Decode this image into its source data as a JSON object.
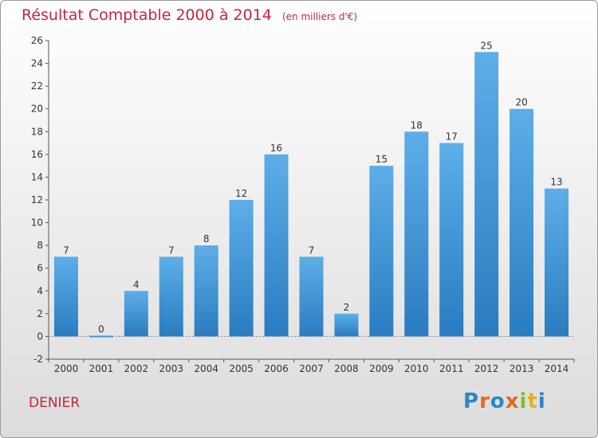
{
  "header": {
    "title": "Résultat Comptable 2000 à 2014",
    "unit": "(en milliers d'€)"
  },
  "footer": {
    "commune": "DENIER",
    "logo_letters": [
      "P",
      "r",
      "o",
      "x",
      "i",
      "t",
      "i"
    ]
  },
  "colors": {
    "title": "#c8243e",
    "bar_top": "#5daee8",
    "bar_bottom": "#2a7cc0",
    "logo": [
      "#2a88c8",
      "#e06a1e",
      "#2a88c8",
      "#e06a1e",
      "#7bbb2e",
      "#e0b21e",
      "#2a88c8"
    ]
  },
  "chart_data": {
    "type": "bar",
    "title": "Résultat Comptable 2000 à 2014",
    "ylabel": "en milliers d'€",
    "xlabel": "",
    "categories": [
      "2000",
      "2001",
      "2002",
      "2003",
      "2004",
      "2005",
      "2006",
      "2007",
      "2008",
      "2009",
      "2010",
      "2011",
      "2012",
      "2013",
      "2014"
    ],
    "values": [
      7,
      0,
      4,
      7,
      8,
      12,
      16,
      7,
      2,
      15,
      18,
      17,
      25,
      20,
      13
    ],
    "ylim": [
      -2,
      26
    ],
    "yticks": [
      -2,
      0,
      2,
      4,
      6,
      8,
      10,
      12,
      14,
      16,
      18,
      20,
      22,
      24,
      26
    ],
    "grid": false,
    "data_labels": true
  }
}
